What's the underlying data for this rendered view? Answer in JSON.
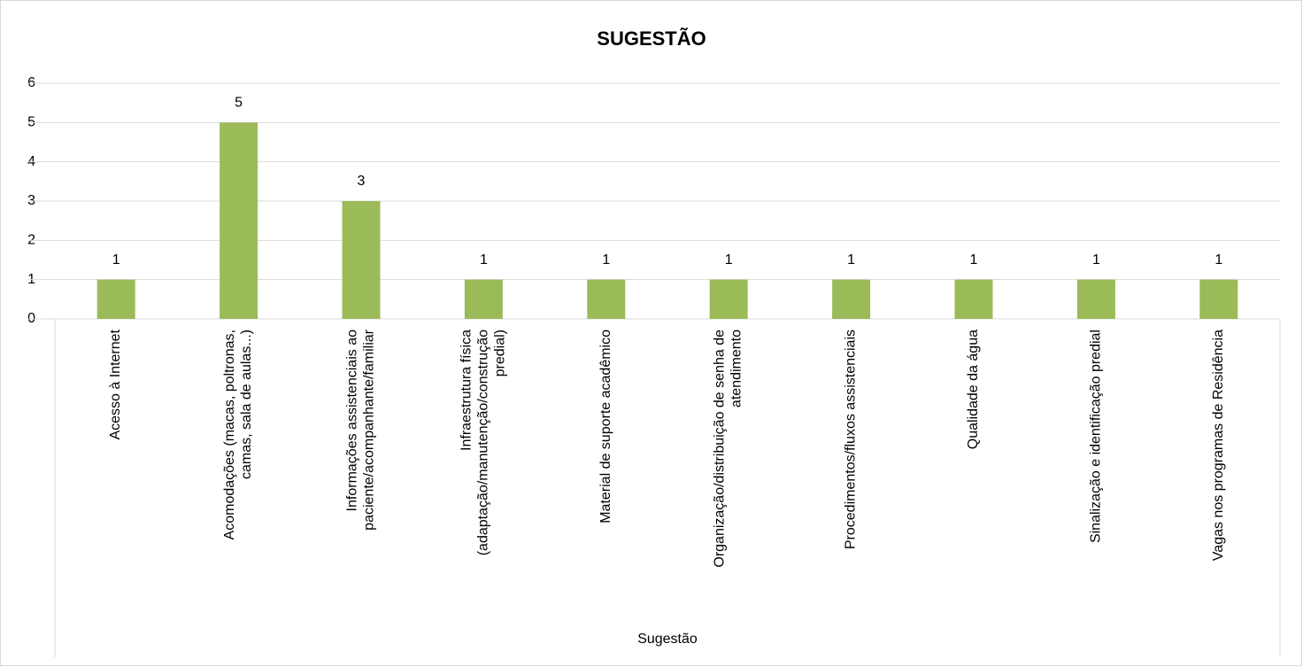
{
  "chart_data": {
    "type": "bar",
    "title": "SUGESTÃO",
    "x_label": "Sugestão",
    "categories": [
      "Acesso à Internet",
      "Acomodações (macas, poltronas, camas, sala de aulas...)",
      "Informações assistenciais ao paciente/acompanhante/familiar",
      "Infraestrutura física (adaptação/manutenção/construção predial)",
      "Material de suporte acadêmico",
      "Organização/distribuição de senha de atendimento",
      "Procedimentos/fluxos assistenciais",
      "Qualidade da água",
      "Sinalização e identificação predial",
      "Vagas nos programas de Residência"
    ],
    "values": [
      1,
      5,
      3,
      1,
      1,
      1,
      1,
      1,
      1,
      1
    ],
    "color": "#9bbb59",
    "ylim": [
      0,
      6
    ],
    "yticks": [
      0,
      1,
      2,
      3,
      4,
      5,
      6
    ],
    "grid": true
  }
}
